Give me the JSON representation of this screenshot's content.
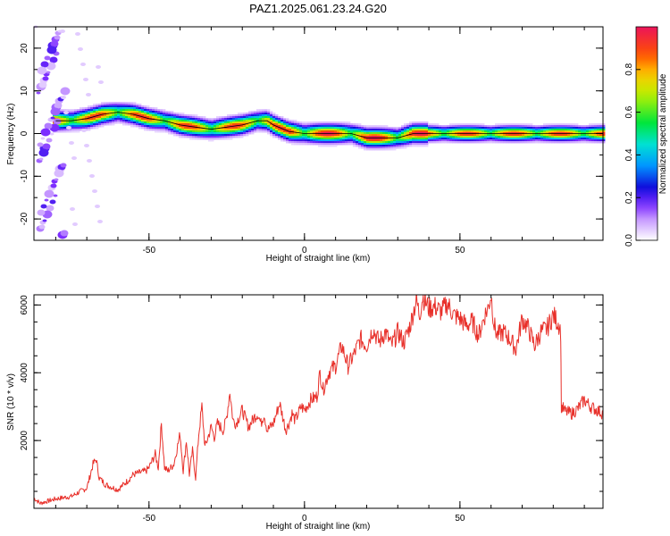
{
  "title": "PAZ1.2025.061.23.24.G20",
  "chart_data": [
    {
      "type": "heatmap",
      "xlabel": "Height of straight line (km)",
      "ylabel": "Frequency (Hz)",
      "xlim": [
        -87,
        96
      ],
      "ylim": [
        -25,
        25
      ],
      "xticks": [
        -50,
        0,
        50
      ],
      "yticks": [
        -20,
        -10,
        0,
        10,
        20
      ],
      "colorbar": {
        "label": "Normalized spectral amplitude",
        "range": [
          0,
          1
        ],
        "ticks": [
          "0.0",
          "0.2",
          "0.4",
          "0.6",
          "0.8"
        ]
      },
      "ridge": {
        "x": [
          -80,
          -75,
          -70,
          -65,
          -60,
          -55,
          -50,
          -45,
          -40,
          -35,
          -30,
          -25,
          -20,
          -15,
          -12,
          -10,
          -5,
          0,
          5,
          10,
          15,
          20,
          25,
          30,
          35,
          40,
          50,
          60,
          70,
          80,
          90,
          96
        ],
        "freq": [
          3,
          3,
          3.5,
          4.5,
          5,
          4.5,
          3.5,
          3,
          2,
          1.5,
          1,
          1.5,
          2,
          3,
          3,
          2,
          0.5,
          0,
          0,
          0,
          0,
          -1,
          -1,
          -1,
          0,
          0,
          0,
          0,
          0,
          0,
          0,
          0
        ]
      }
    },
    {
      "type": "line",
      "xlabel": "Height of straight line (km)",
      "ylabel": "SNR (10 * v/v)",
      "xlim": [
        -87,
        96
      ],
      "ylim": [
        0,
        6300
      ],
      "xticks": [
        -50,
        0,
        50
      ],
      "yticks": [
        2000,
        4000,
        6000
      ],
      "color": "#e8302a",
      "series": [
        {
          "x": [
            -87,
            -85,
            -80,
            -75,
            -70,
            -68,
            -67,
            -66,
            -64,
            -60,
            -57,
            -55,
            -51,
            -50,
            -48,
            -47,
            -46,
            -45,
            -44,
            -42,
            -40,
            -39,
            -38,
            -37,
            -36,
            -35,
            -34,
            -33,
            -32,
            -30,
            -29,
            -28,
            -26,
            -25,
            -24,
            -23,
            -22,
            -20,
            -18,
            -16,
            -15,
            -14,
            -13,
            -12,
            -10,
            -8,
            -6,
            -5,
            -4,
            -3,
            -1,
            0,
            2,
            4,
            5,
            6,
            8,
            10,
            12,
            14,
            16,
            18,
            20,
            22,
            24,
            26,
            28,
            30,
            32,
            34,
            35,
            36,
            37,
            38,
            40,
            42,
            44,
            46,
            48,
            50,
            52,
            54,
            56,
            58,
            59,
            60,
            61,
            62,
            64,
            66,
            68,
            70,
            72,
            74,
            76,
            78,
            80,
            82,
            82.4,
            82.6,
            84,
            86,
            88,
            90,
            92,
            94,
            96
          ],
          "y": [
            300,
            150,
            280,
            350,
            600,
            1300,
            1450,
            900,
            700,
            550,
            800,
            1000,
            1100,
            1200,
            1600,
            1200,
            2500,
            1200,
            1100,
            1300,
            2200,
            1100,
            2000,
            1000,
            1700,
            900,
            2200,
            3000,
            1800,
            2400,
            2100,
            2500,
            2300,
            2700,
            3450,
            2600,
            2500,
            2900,
            2400,
            2700,
            2800,
            2500,
            2800,
            2300,
            2500,
            3100,
            2300,
            2500,
            2800,
            2600,
            3000,
            2900,
            3200,
            3300,
            4000,
            3500,
            4050,
            4200,
            4800,
            4200,
            4550,
            5000,
            4800,
            5300,
            4900,
            5200,
            4800,
            5200,
            4900,
            5400,
            5800,
            6150,
            5700,
            6250,
            5900,
            5950,
            5800,
            6050,
            5700,
            5600,
            5400,
            5500,
            5100,
            5700,
            5900,
            6300,
            5400,
            5100,
            5200,
            5000,
            4700,
            5600,
            5300,
            4800,
            5200,
            5300,
            5700,
            5400,
            5200,
            3000,
            2850,
            2800,
            2950,
            3200,
            3000,
            2900,
            2800
          ]
        }
      ]
    }
  ]
}
